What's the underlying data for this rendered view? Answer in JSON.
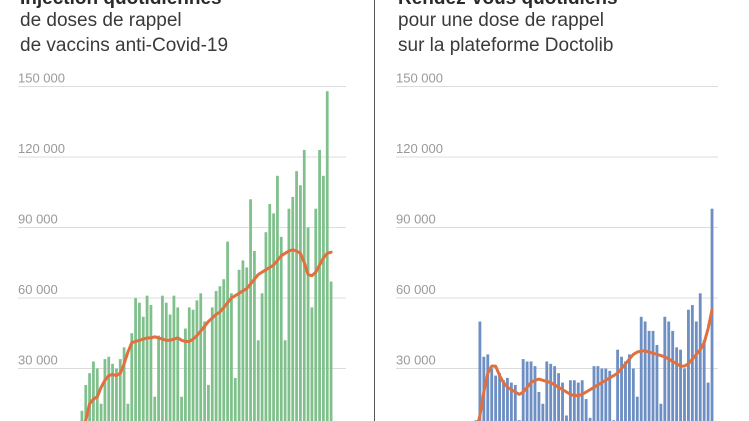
{
  "chart_data": [
    {
      "type": "bar",
      "title_lines": [
        "Injection quotidiennes",
        "de doses de rappel",
        "de vaccins anti-Covid-19"
      ],
      "xlabel": "",
      "ylabel": "",
      "ylim": [
        0,
        160000
      ],
      "yticks": [
        "30 000",
        "60 000",
        "90 000",
        "120 000",
        "150 000"
      ],
      "ytick_values": [
        30000,
        60000,
        90000,
        120000,
        150000
      ],
      "grid": true,
      "bar_color": "#7fc08b",
      "line_color": "#e0703f",
      "series": [
        {
          "values": [
            12000,
            23000,
            28000,
            33000,
            30000,
            15000,
            34000,
            35000,
            32000,
            30000,
            34000,
            39000,
            15000,
            45000,
            60000,
            58000,
            52000,
            61000,
            57000,
            18000,
            44000,
            61000,
            58000,
            53000,
            61000,
            56000,
            18000,
            47000,
            56000,
            55000,
            59000,
            62000,
            50000,
            23000,
            56000,
            63000,
            65000,
            68000,
            84000,
            62000,
            26000,
            72000,
            76000,
            73000,
            102000,
            80000,
            42000,
            62000,
            88000,
            100000,
            96000,
            112000,
            86000,
            42000,
            98000,
            103000,
            114000,
            108000,
            123000,
            90000,
            56000,
            98000,
            123000,
            112000,
            148000,
            67000
          ]
        },
        {
          "values": [
            5000,
            8000,
            15000,
            17000,
            18000,
            22000,
            25000,
            27000,
            27500,
            27000,
            28000,
            32000,
            37000,
            41000,
            41500,
            42000,
            42500,
            43000,
            43000,
            43500,
            43000,
            42500,
            42000,
            42000,
            42500,
            43000,
            42000,
            41500,
            41500,
            42500,
            44000,
            46000,
            48000,
            50000,
            51500,
            53000,
            54000,
            56000,
            58000,
            60000,
            61000,
            62000,
            63000,
            64000,
            66000,
            68000,
            70000,
            71000,
            72000,
            73000,
            74000,
            76000,
            78000,
            79000,
            80000,
            80500,
            80000,
            79000,
            75000,
            70000,
            69500,
            71000,
            74000,
            77000,
            79000,
            79500
          ]
        }
      ]
    },
    {
      "type": "bar",
      "title_lines": [
        "Rendez-vous quotidiens",
        "pour une dose de rappel",
        "sur la plateforme Doctolib"
      ],
      "xlabel": "",
      "ylabel": "",
      "ylim": [
        0,
        160000
      ],
      "yticks": [
        "30 000",
        "60 000",
        "90 000",
        "120 000",
        "150 000"
      ],
      "ytick_values": [
        30000,
        60000,
        90000,
        120000,
        150000
      ],
      "grid": true,
      "bar_color": "#6e8fc4",
      "line_color": "#e0703f",
      "series": [
        {
          "values": [
            8000,
            50000,
            35000,
            36000,
            30000,
            27000,
            28000,
            25000,
            26000,
            24000,
            23000,
            8000,
            34000,
            33000,
            33000,
            31000,
            20000,
            15000,
            33000,
            32000,
            31000,
            28000,
            24000,
            10000,
            25000,
            25000,
            24000,
            25000,
            17000,
            9000,
            31000,
            31000,
            30000,
            30000,
            29000,
            8000,
            38000,
            35000,
            33000,
            36000,
            30000,
            18000,
            52000,
            50000,
            46000,
            46000,
            40000,
            15000,
            52000,
            50000,
            46000,
            39000,
            38000,
            30000,
            55000,
            57000,
            50000,
            62000,
            42000,
            24000,
            98000
          ]
        },
        {
          "values": [
            3000,
            10000,
            20000,
            28000,
            31000,
            31000,
            27000,
            24000,
            22000,
            21000,
            20000,
            19000,
            20000,
            22000,
            24000,
            25000,
            25500,
            25000,
            24500,
            24000,
            23000,
            22000,
            21000,
            20000,
            19000,
            18500,
            18500,
            19000,
            20000,
            21000,
            22000,
            23000,
            24000,
            25000,
            26000,
            27000,
            28000,
            30000,
            32000,
            34000,
            36000,
            37000,
            37500,
            37500,
            37000,
            36500,
            36000,
            35500,
            35000,
            34000,
            33000,
            32000,
            31000,
            31000,
            32000,
            34000,
            36000,
            38000,
            41000,
            47000,
            55000
          ]
        }
      ]
    }
  ]
}
